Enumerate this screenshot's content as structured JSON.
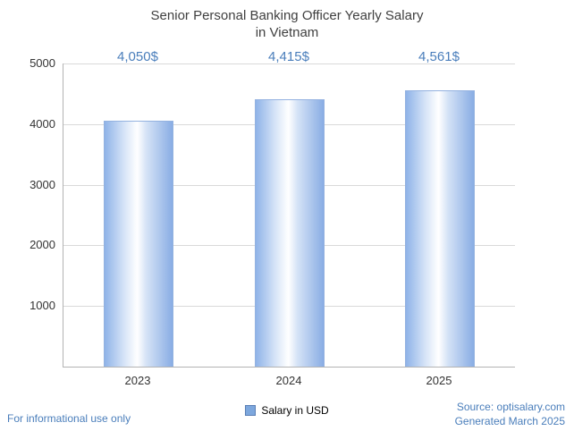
{
  "title": {
    "line1": "Senior Personal Banking Officer Yearly Salary",
    "line2": "in Vietnam"
  },
  "chart_data": {
    "type": "bar",
    "title": "Senior Personal Banking Officer Yearly Salary in Vietnam",
    "categories": [
      "2023",
      "2024",
      "2025"
    ],
    "values": [
      4050,
      4415,
      4561
    ],
    "value_labels": [
      "4,050$",
      "4,415$",
      "4,561$"
    ],
    "xlabel": "",
    "ylabel": "",
    "ylim": [
      0,
      5000
    ],
    "yticks": [
      1000,
      2000,
      3000,
      4000,
      5000
    ],
    "grid": true,
    "legend_position": "bottom",
    "bar_color": "#8fb3e8",
    "value_label_color": "#4a7ebb"
  },
  "legend": {
    "label": "Salary in USD"
  },
  "footer": {
    "left": "For informational use only",
    "source": "Source: optisalary.com",
    "generated": "Generated March 2025"
  },
  "colors": {
    "accent_blue": "#4a7ebb",
    "title_gray": "#404040"
  }
}
